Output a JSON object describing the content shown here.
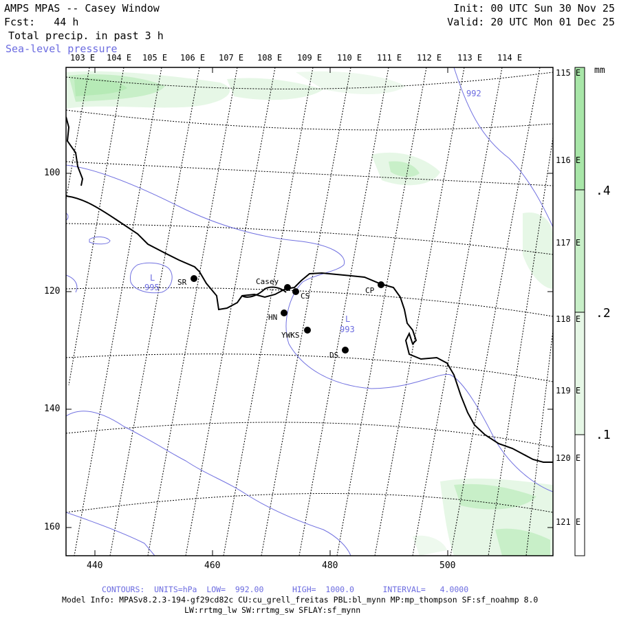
{
  "header": {
    "title": "AMPS MPAS -- Casey Window",
    "forecast": "Fcst:   44 h",
    "field": "Total precip. in past 3 h",
    "overlay": "Sea-level pressure",
    "init": "Init: 00 UTC Sun 30 Nov 25",
    "valid": "Valid: 20 UTC Mon 01 Dec 25"
  },
  "map": {
    "lon_labels_top": [
      "103 E",
      "104 E",
      "105 E",
      "106 E",
      "107 E",
      "108 E",
      "109 E",
      "110 E",
      "111 E",
      "112 E",
      "113 E",
      "114 E"
    ],
    "lon_labels_right": [
      "115 E",
      "116 E",
      "117 E",
      "118 E",
      "119 E",
      "120 E",
      "121 E"
    ],
    "x_ticks": [
      "440",
      "460",
      "480",
      "500"
    ],
    "y_ticks": [
      "100",
      "120",
      "140",
      "160"
    ],
    "pressure_labels": [
      {
        "text": "L",
        "sub": "995"
      },
      {
        "text": "L",
        "sub": "993"
      },
      {
        "text": "992"
      }
    ],
    "stations": [
      "SR",
      "Casey",
      "CS",
      "CP",
      "HN",
      "YWKS",
      "DS"
    ],
    "colors": {
      "precip_light": "#e6f7e6",
      "precip_mid": "#c8efc8",
      "precip_dark": "#9fe29f",
      "contour": "#7070e0"
    }
  },
  "colorbar": {
    "unit": "mm",
    "labels": [
      ".4",
      ".2",
      ".1"
    ]
  },
  "footer": {
    "contours": "CONTOURS:  UNITS=hPa  LOW=  992.00      HIGH=  1000.0      INTERVAL=   4.0000",
    "model_info": "Model Info: MPASv8.2.3-194-gf29cd82c CU:cu_grell_freitas PBL:bl_mynn MP:mp_thompson SF:sf_noahmp 8.0",
    "model_info2": "LW:rrtmg_lw SW:rrtmg_sw SFLAY:sf_mynn"
  }
}
